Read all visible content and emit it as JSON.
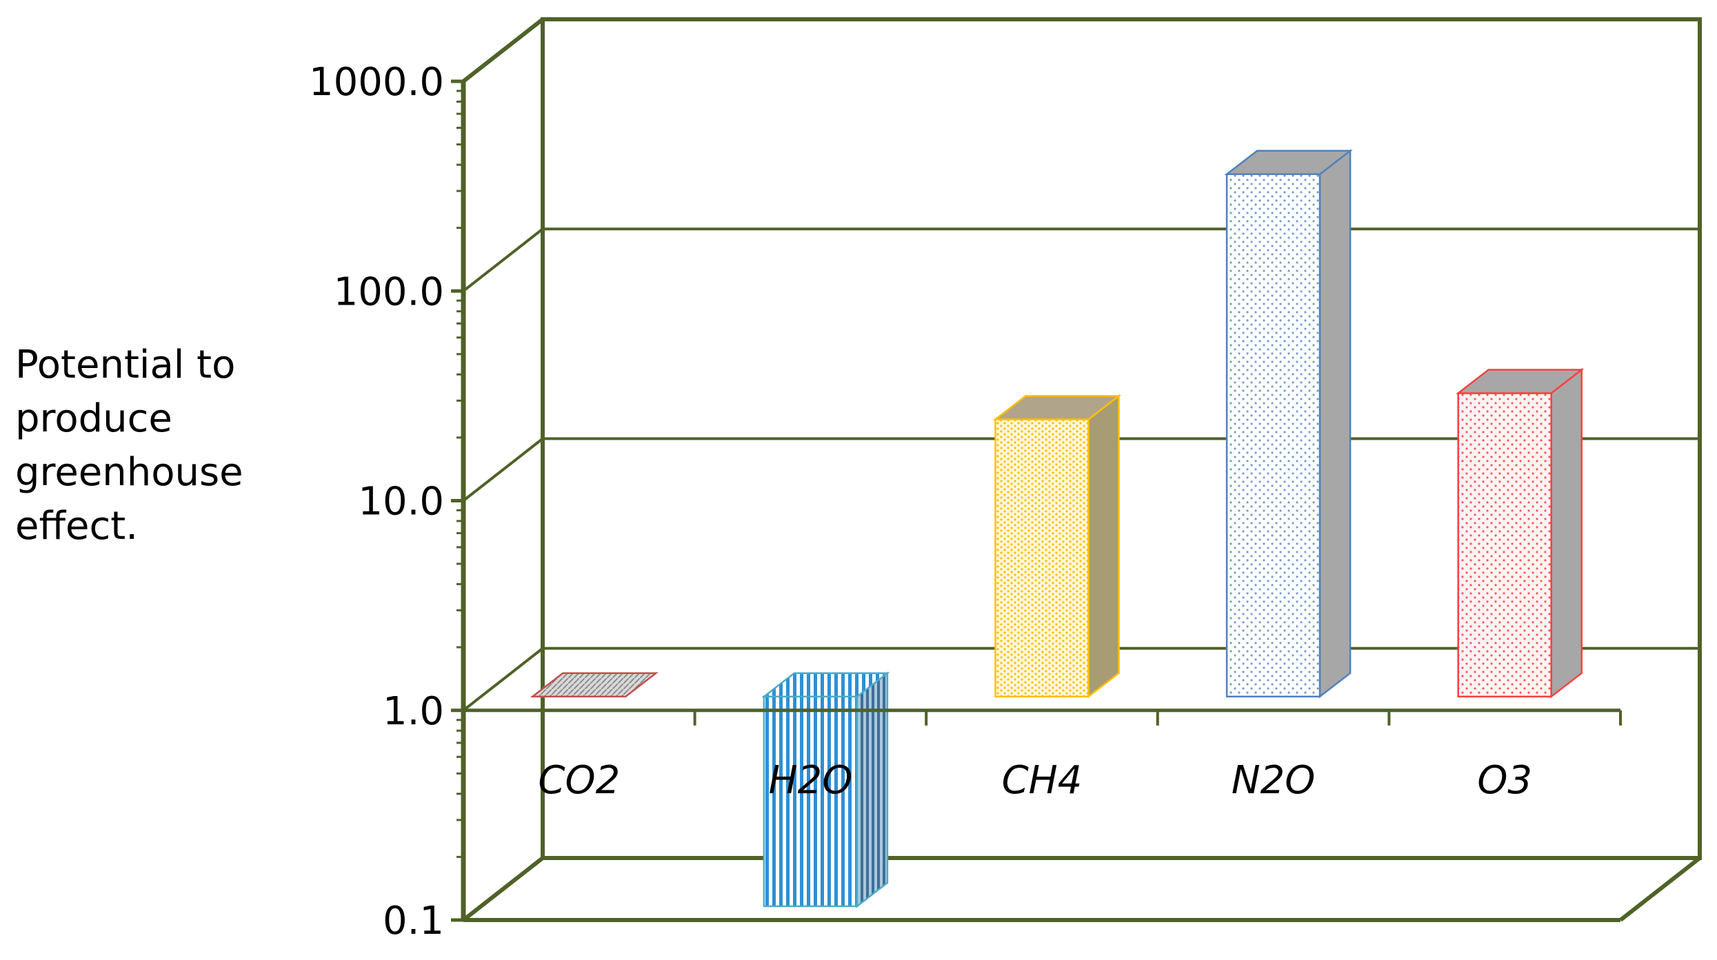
{
  "chart_data": {
    "type": "bar",
    "style": "3d",
    "categories": [
      "CO2",
      "H2O",
      "CH4",
      "N2O",
      "O3"
    ],
    "values": [
      1,
      0.1,
      21,
      310,
      28
    ],
    "ylabel_lines": [
      "Potential to",
      "produce",
      "greenhouse",
      "effect."
    ],
    "xlabel": "",
    "yscale": "log",
    "ylim": [
      0.1,
      1000
    ],
    "yticks": [
      {
        "value": 0.1,
        "label": "0.1"
      },
      {
        "value": 1,
        "label": "1.0"
      },
      {
        "value": 10,
        "label": "10.0"
      },
      {
        "value": 100,
        "label": "100.0"
      },
      {
        "value": 1000,
        "label": "1000.0"
      }
    ],
    "grid": true,
    "legend": "none",
    "axis_color": "#4f6228",
    "bar_colors": [
      "#c0504d",
      "#4bacc6",
      "#ffc000",
      "#4f81bd",
      "#ff4040"
    ]
  }
}
